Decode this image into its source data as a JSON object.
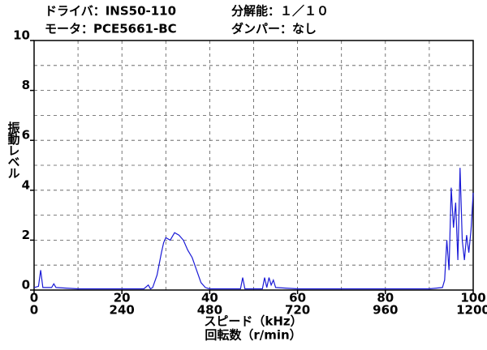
{
  "chart_data": {
    "type": "line",
    "title_lines": [
      "ドライバ：INS50-110",
      "分解能：１／１０",
      "モータ：PCE5661-BC",
      "ダンパー：なし"
    ],
    "ylabel": "振動レベル",
    "xlabel": "スピード（kHz）",
    "x2label": "回転数（r/min）",
    "xlim": [
      0,
      100
    ],
    "xticks": [
      0,
      20,
      40,
      60,
      80,
      100
    ],
    "xgrid": [
      10,
      20,
      30,
      40,
      50,
      60,
      70,
      80,
      90
    ],
    "x2lim": [
      0,
      1200
    ],
    "x2ticks": [
      0,
      240,
      480,
      720,
      960,
      1200
    ],
    "ylim": [
      0,
      10
    ],
    "yticks": [
      0,
      2,
      4,
      6,
      8,
      10
    ],
    "ygrid": [
      1,
      2,
      3,
      4,
      5,
      6,
      7,
      8,
      9
    ],
    "series": [
      {
        "color": "#1a1ad6",
        "x": [
          0,
          1,
          1.5,
          2,
          4,
          4.5,
          5,
          10,
          20,
          25,
          26,
          26.5,
          27,
          28,
          29,
          29.5,
          30,
          31,
          32,
          33,
          34,
          35,
          36,
          37,
          38,
          39,
          40,
          47,
          47.5,
          48,
          52,
          52.5,
          53,
          53.5,
          54,
          54.5,
          55,
          60,
          70,
          90,
          93,
          93.5,
          94,
          94.5,
          95,
          95.5,
          96,
          96.5,
          97,
          97.5,
          98,
          98.5,
          99,
          99.5,
          100
        ],
        "values": [
          0.1,
          0.15,
          0.8,
          0.1,
          0.1,
          0.25,
          0.1,
          0.05,
          0.05,
          0.05,
          0.2,
          0.05,
          0.1,
          0.6,
          1.5,
          1.9,
          2.1,
          2.0,
          2.3,
          2.2,
          2.0,
          1.6,
          1.3,
          0.8,
          0.3,
          0.1,
          0.05,
          0.05,
          0.5,
          0.05,
          0.05,
          0.5,
          0.1,
          0.5,
          0.2,
          0.4,
          0.1,
          0.05,
          0.05,
          0.05,
          0.1,
          0.4,
          2.0,
          0.8,
          4.1,
          2.5,
          3.5,
          1.2,
          4.9,
          2.0,
          1.2,
          2.2,
          1.5,
          2.4,
          3.9
        ]
      }
    ]
  }
}
